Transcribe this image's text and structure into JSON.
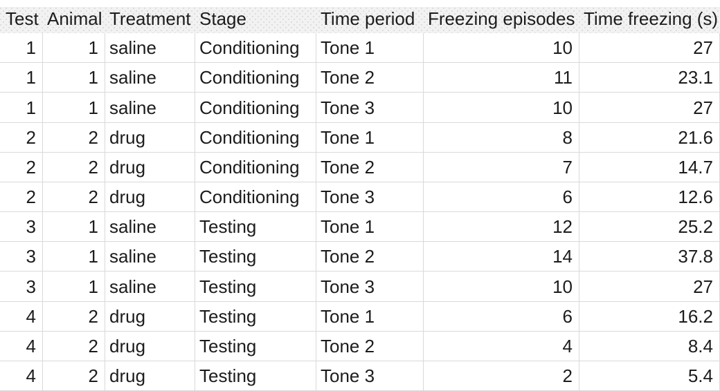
{
  "table": {
    "columns": [
      {
        "key": "test",
        "label": "Test",
        "align": "right"
      },
      {
        "key": "animal",
        "label": "Animal",
        "align": "right"
      },
      {
        "key": "treatment",
        "label": "Treatment",
        "align": "left"
      },
      {
        "key": "stage",
        "label": "Stage",
        "align": "left"
      },
      {
        "key": "time_period",
        "label": "Time period",
        "align": "left"
      },
      {
        "key": "freezing_episodes",
        "label": "Freezing episodes",
        "align": "right"
      },
      {
        "key": "time_freezing_s",
        "label": "Time freezing (s)",
        "align": "right"
      }
    ],
    "rows": [
      [
        "1",
        "1",
        "saline",
        "Conditioning",
        "Tone 1",
        "10",
        "27"
      ],
      [
        "1",
        "1",
        "saline",
        "Conditioning",
        "Tone 2",
        "11",
        "23.1"
      ],
      [
        "1",
        "1",
        "saline",
        "Conditioning",
        "Tone 3",
        "10",
        "27"
      ],
      [
        "2",
        "2",
        "drug",
        "Conditioning",
        "Tone 1",
        "8",
        "21.6"
      ],
      [
        "2",
        "2",
        "drug",
        "Conditioning",
        "Tone 2",
        "7",
        "14.7"
      ],
      [
        "2",
        "2",
        "drug",
        "Conditioning",
        "Tone 3",
        "6",
        "12.6"
      ],
      [
        "3",
        "1",
        "saline",
        "Testing",
        "Tone 1",
        "12",
        "25.2"
      ],
      [
        "3",
        "1",
        "saline",
        "Testing",
        "Tone 2",
        "14",
        "37.8"
      ],
      [
        "3",
        "1",
        "saline",
        "Testing",
        "Tone 3",
        "10",
        "27"
      ],
      [
        "4",
        "2",
        "drug",
        "Testing",
        "Tone 1",
        "6",
        "16.2"
      ],
      [
        "4",
        "2",
        "drug",
        "Testing",
        "Tone 2",
        "4",
        "8.4"
      ],
      [
        "4",
        "2",
        "drug",
        "Testing",
        "Tone 3",
        "2",
        "5.4"
      ]
    ]
  },
  "colors": {
    "header_bg": "#f2f2f2",
    "header_dot": "#dcdcdc",
    "gridline": "#d9d9d9",
    "text": "#1c1c1c",
    "background": "#ffffff"
  }
}
